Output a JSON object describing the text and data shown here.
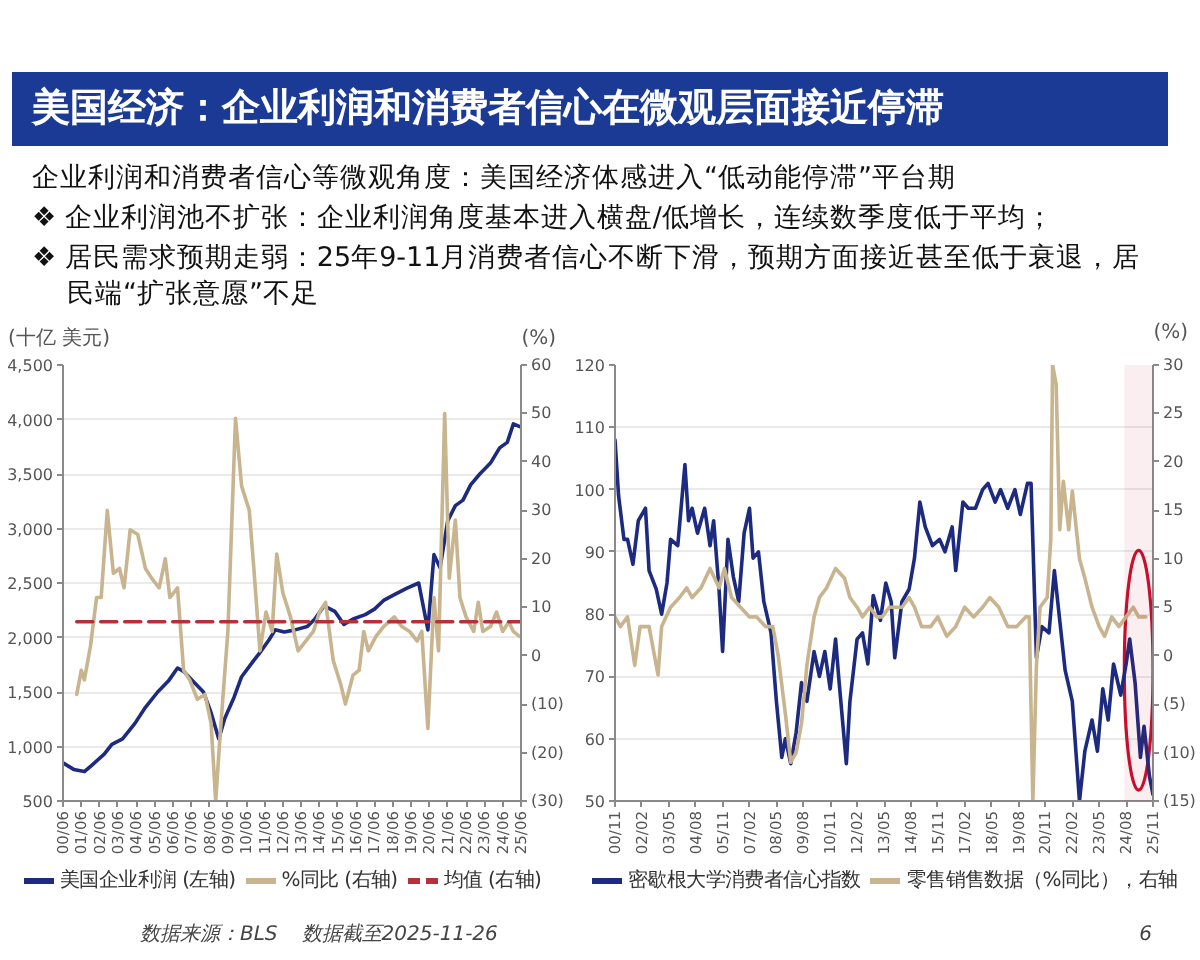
{
  "chart_data": [
    {
      "type": "other",
      "title": "美国经济：企业利润和消费者信心在微观层面接近停滞",
      "subtitle": "企业利润和消费者信心等微观角度：美国经济体感进入“低动能停滞”平台期",
      "annotations": [
        "❖ 企业利润池不扩张：企业利润角度基本进入横盘/低增长，连续数季度低于平均；",
        "❖ 居民需求预期走弱：25年9-11月消费者信心不断下滑，预期方面接近甚至低于衰退，居民端“扩张意愿”不足"
      ]
    },
    {
      "type": "line",
      "ylabel": "(十亿 美元)",
      "y2label": "(%)",
      "grid": "y",
      "legend": "bottom",
      "xlim": [
        "2000-06",
        "2025-06"
      ],
      "xticks": [
        {
          "value": "2000-06",
          "label": "00/06"
        },
        {
          "value": "2001-06",
          "label": "01/06"
        },
        {
          "value": "2002-06",
          "label": "02/06"
        },
        {
          "value": "2003-06",
          "label": "03/06"
        },
        {
          "value": "2004-06",
          "label": "04/06"
        },
        {
          "value": "2005-06",
          "label": "05/06"
        },
        {
          "value": "2006-06",
          "label": "06/06"
        },
        {
          "value": "2007-06",
          "label": "07/06"
        },
        {
          "value": "2008-06",
          "label": "08/06"
        },
        {
          "value": "2009-06",
          "label": "09/06"
        },
        {
          "value": "2010-06",
          "label": "10/06"
        },
        {
          "value": "2011-06",
          "label": "11/06"
        },
        {
          "value": "2012-06",
          "label": "12/06"
        },
        {
          "value": "2013-06",
          "label": "13/06"
        },
        {
          "value": "2014-06",
          "label": "14/06"
        },
        {
          "value": "2015-06",
          "label": "15/06"
        },
        {
          "value": "2016-06",
          "label": "16/06"
        },
        {
          "value": "2017-06",
          "label": "17/06"
        },
        {
          "value": "2018-06",
          "label": "18/06"
        },
        {
          "value": "2019-06",
          "label": "19/06"
        },
        {
          "value": "2020-06",
          "label": "20/06"
        },
        {
          "value": "2021-06",
          "label": "21/06"
        },
        {
          "value": "2022-06",
          "label": "22/06"
        },
        {
          "value": "2023-06",
          "label": "23/06"
        },
        {
          "value": "2024-06",
          "label": "24/06"
        },
        {
          "value": "2025-06",
          "label": "25/06"
        }
      ],
      "ylim": [
        500,
        4500
      ],
      "yticks": [
        500,
        {
          "value": 1000,
          "label": "1,000"
        },
        {
          "value": 1500,
          "label": "1,500"
        },
        {
          "value": 2000,
          "label": "2,000"
        },
        {
          "value": 2500,
          "label": "2,500"
        },
        {
          "value": 3000,
          "label": "3,000"
        },
        {
          "value": 3500,
          "label": "3,500"
        },
        {
          "value": 4000,
          "label": "4,000"
        },
        {
          "value": 4500,
          "label": "4,500"
        }
      ],
      "y2lim": [
        -30,
        60
      ],
      "y2ticks": [
        {
          "value": -30,
          "label": "(30)"
        },
        {
          "value": -20,
          "label": "(20)"
        },
        {
          "value": -10,
          "label": "(10)"
        },
        0,
        10,
        20,
        30,
        40,
        50,
        60
      ],
      "series": [
        {
          "name": "美国企业利润 (左轴)",
          "color": "#1c2a80",
          "x": [
            "2000-06",
            "2001-01",
            "2001-08",
            "2002-01",
            "2002-09",
            "2003-02",
            "2003-09",
            "2004-05",
            "2004-12",
            "2005-08",
            "2006-03",
            "2006-09",
            "2007-01",
            "2007-07",
            "2008-02",
            "2008-07",
            "2008-12",
            "2009-04",
            "2009-10",
            "2010-03",
            "2010-11",
            "2011-04",
            "2011-09",
            "2012-01",
            "2012-07",
            "2013-02",
            "2013-10",
            "2014-03",
            "2014-09",
            "2015-04",
            "2015-10",
            "2016-04",
            "2016-12",
            "2017-06",
            "2017-12",
            "2018-08",
            "2019-03",
            "2019-11",
            "2020-05",
            "2020-09",
            "2021-01",
            "2021-06",
            "2021-11",
            "2022-04",
            "2022-09",
            "2023-03",
            "2023-10",
            "2024-04",
            "2024-09",
            "2025-01",
            "2025-06"
          ],
          "values": [
            850,
            790,
            770,
            830,
            930,
            1020,
            1070,
            1210,
            1360,
            1500,
            1600,
            1720,
            1690,
            1600,
            1500,
            1310,
            1070,
            1260,
            1450,
            1640,
            1790,
            1880,
            1980,
            2070,
            2050,
            2070,
            2100,
            2170,
            2290,
            2240,
            2120,
            2170,
            2210,
            2260,
            2340,
            2400,
            2450,
            2500,
            2070,
            2760,
            2640,
            3070,
            3210,
            3260,
            3400,
            3500,
            3600,
            3740,
            3790,
            3960,
            3930
          ]
        },
        {
          "name": "%同比 (右轴)",
          "color": "#c8b48f",
          "axis": "y2",
          "x": [
            "2001-03",
            "2001-06",
            "2001-08",
            "2001-12",
            "2002-04",
            "2002-07",
            "2002-11",
            "2003-03",
            "2003-07",
            "2003-10",
            "2004-02",
            "2004-07",
            "2004-12",
            "2005-04",
            "2005-09",
            "2006-01",
            "2006-04",
            "2006-09",
            "2007-01",
            "2007-05",
            "2007-10",
            "2008-03",
            "2008-07",
            "2008-10",
            "2009-01",
            "2009-06",
            "2009-11",
            "2010-03",
            "2010-08",
            "2010-11",
            "2011-03",
            "2011-07",
            "2011-11",
            "2012-02",
            "2012-06",
            "2012-11",
            "2013-04",
            "2013-09",
            "2014-02",
            "2014-06",
            "2014-10",
            "2015-03",
            "2015-08",
            "2015-11",
            "2016-04",
            "2016-08",
            "2016-11",
            "2017-02",
            "2017-07",
            "2017-12",
            "2018-07",
            "2018-12",
            "2019-05",
            "2019-10",
            "2020-01",
            "2020-05",
            "2020-09",
            "2020-12",
            "2021-04",
            "2021-07",
            "2021-11",
            "2022-02",
            "2022-06",
            "2022-11",
            "2023-02",
            "2023-05",
            "2023-10",
            "2024-02",
            "2024-06",
            "2024-10",
            "2025-01",
            "2025-05"
          ],
          "values": [
            -8,
            -3,
            -5,
            2,
            12,
            12,
            30,
            17,
            18,
            14,
            26,
            25,
            18,
            16,
            14,
            20,
            12,
            14,
            -3,
            -5,
            -9,
            -8,
            -14,
            -30,
            -16,
            5,
            49,
            35,
            30,
            18,
            1,
            9,
            5,
            21,
            13,
            8,
            1,
            3,
            5,
            9,
            11,
            -1,
            -6,
            -10,
            -4,
            -3,
            5,
            1,
            4,
            6,
            8,
            6,
            5,
            3,
            5,
            -15,
            12,
            1,
            50,
            16,
            28,
            12,
            8,
            5,
            11,
            5,
            6,
            9,
            5,
            7,
            5,
            4
          ]
        },
        {
          "name": "均值 (右轴)",
          "color": "#b5303a",
          "axis": "y2",
          "line_style": "dashed",
          "x": [
            "2001-03",
            "2025-06"
          ],
          "values": [
            7,
            7
          ]
        }
      ]
    },
    {
      "type": "line",
      "y2label": "(%)",
      "grid": "y",
      "legend": "bottom",
      "xlim": [
        "2000-11",
        "2025-11"
      ],
      "xticks": [
        {
          "value": "2000-11",
          "label": "00/11"
        },
        {
          "value": "2002-02",
          "label": "02/02"
        },
        {
          "value": "2003-05",
          "label": "03/05"
        },
        {
          "value": "2004-08",
          "label": "04/08"
        },
        {
          "value": "2005-11",
          "label": "05/11"
        },
        {
          "value": "2007-02",
          "label": "07/02"
        },
        {
          "value": "2008-05",
          "label": "08/05"
        },
        {
          "value": "2009-08",
          "label": "09/08"
        },
        {
          "value": "2010-11",
          "label": "10/11"
        },
        {
          "value": "2012-02",
          "label": "12/02"
        },
        {
          "value": "2013-05",
          "label": "13/05"
        },
        {
          "value": "2014-08",
          "label": "14/08"
        },
        {
          "value": "2015-11",
          "label": "15/11"
        },
        {
          "value": "2017-02",
          "label": "17/02"
        },
        {
          "value": "2018-05",
          "label": "18/05"
        },
        {
          "value": "2019-08",
          "label": "19/08"
        },
        {
          "value": "2020-11",
          "label": "20/11"
        },
        {
          "value": "2022-02",
          "label": "22/02"
        },
        {
          "value": "2023-05",
          "label": "23/05"
        },
        {
          "value": "2024-08",
          "label": "24/08"
        },
        {
          "value": "2025-11",
          "label": "25/11"
        }
      ],
      "ylim": [
        50,
        120
      ],
      "yticks": [
        50,
        60,
        70,
        80,
        90,
        100,
        110,
        120
      ],
      "y2lim": [
        -15,
        30
      ],
      "y2ticks": [
        {
          "value": -15,
          "label": "(15)"
        },
        {
          "value": -10,
          "label": "(10)"
        },
        {
          "value": -5,
          "label": "(5)"
        },
        0,
        5,
        10,
        15,
        20,
        25,
        30
      ],
      "bands": [
        {
          "axis": "x",
          "from": "2024-07",
          "to": "2025-11",
          "color": "#c8102e"
        }
      ],
      "series": [
        {
          "name": "密歇根大学消费者信心指数",
          "color": "#1c2a80",
          "x": [
            "2000-11",
            "2001-01",
            "2001-04",
            "2001-06",
            "2001-09",
            "2001-12",
            "2002-04",
            "2002-06",
            "2002-10",
            "2003-01",
            "2003-04",
            "2003-06",
            "2003-10",
            "2004-02",
            "2004-04",
            "2004-06",
            "2004-09",
            "2005-01",
            "2005-04",
            "2005-06",
            "2005-09",
            "2005-11",
            "2006-02",
            "2006-05",
            "2006-08",
            "2006-11",
            "2007-02",
            "2007-04",
            "2007-07",
            "2007-10",
            "2008-02",
            "2008-05",
            "2008-08",
            "2008-10",
            "2009-01",
            "2009-04",
            "2009-07",
            "2009-10",
            "2010-02",
            "2010-05",
            "2010-08",
            "2010-11",
            "2011-02",
            "2011-04",
            "2011-08",
            "2011-10",
            "2012-02",
            "2012-05",
            "2012-08",
            "2012-11",
            "2013-03",
            "2013-06",
            "2013-09",
            "2013-11",
            "2014-03",
            "2014-07",
            "2014-10",
            "2015-01",
            "2015-04",
            "2015-08",
            "2015-12",
            "2016-03",
            "2016-07",
            "2016-09",
            "2017-01",
            "2017-04",
            "2017-08",
            "2017-12",
            "2018-03",
            "2018-07",
            "2018-10",
            "2019-02",
            "2019-06",
            "2019-09",
            "2020-01",
            "2020-03",
            "2020-06",
            "2020-09",
            "2021-01",
            "2021-04",
            "2021-07",
            "2021-10",
            "2022-02",
            "2022-06",
            "2022-09",
            "2023-01",
            "2023-04",
            "2023-07",
            "2023-10",
            "2024-01",
            "2024-05",
            "2024-08",
            "2024-10",
            "2025-01",
            "2025-04",
            "2025-06",
            "2025-09",
            "2025-11"
          ],
          "values": [
            108,
            99,
            92,
            92,
            88,
            95,
            97,
            87,
            84,
            80,
            85,
            92,
            91,
            104,
            95,
            97,
            93,
            97,
            91,
            95,
            84,
            74,
            92,
            86,
            82,
            93,
            97,
            89,
            90,
            82,
            77,
            66,
            57,
            60,
            56,
            61,
            69,
            66,
            74,
            70,
            74,
            68,
            76,
            69,
            56,
            66,
            76,
            77,
            72,
            83,
            79,
            85,
            82,
            73,
            82,
            84,
            89,
            98,
            94,
            91,
            92,
            90,
            94,
            87,
            98,
            97,
            97,
            100,
            101,
            98,
            100,
            97,
            100,
            96,
            101,
            101,
            73,
            78,
            77,
            87,
            79,
            71,
            66,
            50,
            58,
            63,
            58,
            68,
            63,
            72,
            67,
            72,
            76,
            69,
            57,
            62,
            54,
            51
          ]
        },
        {
          "name": "零售销售数据（%同比），右轴",
          "color": "#c8b48f",
          "axis": "y2",
          "x": [
            "2000-11",
            "2001-02",
            "2001-06",
            "2001-10",
            "2002-01",
            "2002-06",
            "2002-11",
            "2003-01",
            "2003-06",
            "2003-11",
            "2004-03",
            "2004-06",
            "2004-11",
            "2005-04",
            "2005-09",
            "2005-12",
            "2006-04",
            "2006-09",
            "2007-02",
            "2007-06",
            "2007-11",
            "2008-03",
            "2008-06",
            "2008-10",
            "2009-01",
            "2009-04",
            "2009-07",
            "2009-10",
            "2010-02",
            "2010-05",
            "2010-09",
            "2011-02",
            "2011-07",
            "2011-10",
            "2012-02",
            "2012-05",
            "2012-09",
            "2013-01",
            "2013-04",
            "2013-08",
            "2013-11",
            "2014-03",
            "2014-07",
            "2014-10",
            "2015-02",
            "2015-07",
            "2015-11",
            "2016-04",
            "2016-09",
            "2017-02",
            "2017-07",
            "2017-12",
            "2018-04",
            "2018-09",
            "2019-02",
            "2019-07",
            "2019-12",
            "2020-02",
            "2020-04",
            "2020-06",
            "2020-08",
            "2020-12",
            "2021-02",
            "2021-03",
            "2021-05",
            "2021-07",
            "2021-09",
            "2021-12",
            "2022-02",
            "2022-06",
            "2022-09",
            "2023-01",
            "2023-05",
            "2023-08",
            "2023-12",
            "2024-04",
            "2024-08",
            "2024-12",
            "2025-03",
            "2025-07"
          ],
          "values": [
            4,
            3,
            4,
            -1,
            3,
            3,
            -2,
            3,
            5,
            6,
            7,
            6,
            7,
            9,
            7,
            9,
            6,
            5,
            4,
            4,
            3,
            3,
            0,
            -6,
            -11,
            -10,
            -7,
            -1,
            4,
            6,
            7,
            9,
            8,
            6,
            5,
            4,
            5,
            4,
            4,
            5,
            5,
            5,
            6,
            5,
            3,
            3,
            4,
            2,
            3,
            5,
            4,
            5,
            6,
            5,
            3,
            3,
            4,
            4,
            -15,
            -1,
            5,
            6,
            12,
            30,
            28,
            13,
            18,
            13,
            17,
            10,
            8,
            5,
            3,
            2,
            4,
            3,
            4,
            5,
            4,
            4
          ]
        }
      ]
    },
    {
      "type": "other",
      "annotations": [
        "数据来源：BLS",
        "数据截至2025-11-26",
        "6"
      ]
    }
  ]
}
